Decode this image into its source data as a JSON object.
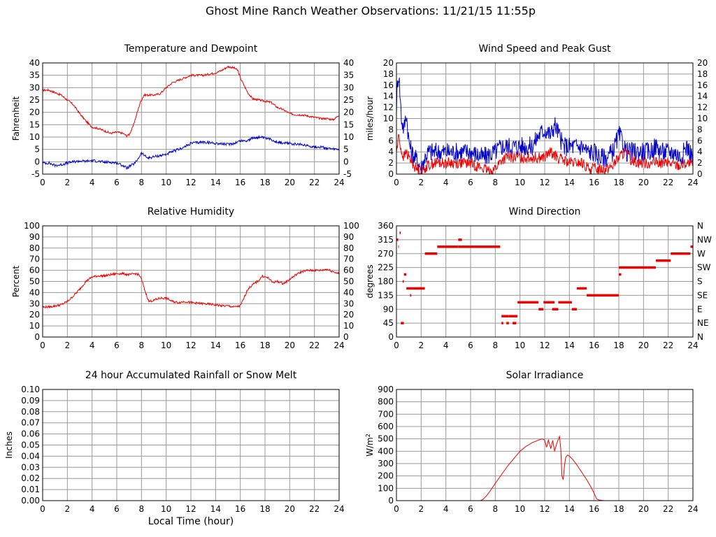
{
  "page": {
    "title": "Ghost Mine Ranch Weather Observations: 11/21/15 11:55p"
  },
  "chart_data": [
    {
      "id": "temp",
      "type": "line",
      "title": "Temperature and Dewpoint",
      "xlabel": "",
      "ylabel": "Fahrenheit",
      "xlim": [
        0,
        24
      ],
      "ylim": [
        -5,
        40
      ],
      "xticks": [
        0,
        2,
        4,
        6,
        8,
        10,
        12,
        14,
        16,
        18,
        20,
        22,
        24
      ],
      "yticks": [
        -5,
        0,
        5,
        10,
        15,
        20,
        25,
        30,
        35,
        40
      ],
      "right_ticks": [
        "-5",
        "0",
        "5",
        "10",
        "15",
        "20",
        "25",
        "30",
        "35",
        "40"
      ],
      "grid": true,
      "series": [
        {
          "name": "Temperature",
          "color": "#ee0000",
          "noise": 0.4,
          "x": [
            0,
            0.5,
            1.0,
            1.5,
            2.0,
            2.5,
            3.0,
            3.5,
            4.0,
            4.5,
            5.0,
            5.5,
            6.0,
            6.5,
            6.8,
            7.0,
            7.3,
            7.6,
            7.9,
            8.2,
            8.6,
            9.0,
            9.5,
            10.0,
            10.5,
            11.0,
            11.5,
            12.0,
            12.5,
            13.0,
            13.5,
            14.0,
            14.5,
            15.0,
            15.5,
            15.8,
            16.0,
            16.3,
            16.6,
            17.0,
            17.5,
            18.0,
            18.5,
            19.0,
            19.5,
            20.0,
            20.5,
            21.0,
            21.5,
            22.0,
            22.5,
            23.0,
            23.5,
            23.8,
            24.0
          ],
          "y": [
            29,
            29,
            28,
            27,
            25,
            23,
            19.5,
            16.5,
            14,
            13.5,
            12.5,
            11.5,
            12,
            11.5,
            10.5,
            11,
            14,
            19,
            24,
            27,
            27,
            27,
            27.5,
            30,
            32,
            33,
            34,
            35,
            35,
            35,
            35.5,
            36,
            37,
            38.5,
            38,
            37,
            34,
            31,
            28,
            25.5,
            25,
            24.5,
            24,
            22,
            21,
            19.5,
            19,
            19,
            18.5,
            18,
            17.5,
            17.5,
            17,
            18,
            19
          ]
        },
        {
          "name": "Dewpoint",
          "color": "#0000cc",
          "noise": 0.55,
          "x": [
            0,
            0.5,
            1.0,
            1.5,
            2.0,
            2.5,
            3.0,
            3.5,
            4.0,
            4.5,
            5.0,
            5.5,
            6.0,
            6.5,
            6.8,
            7.0,
            7.5,
            8.0,
            8.5,
            9.0,
            9.5,
            10.0,
            10.5,
            11.0,
            11.5,
            12.0,
            13.0,
            14.0,
            15.0,
            15.5,
            16.0,
            16.5,
            17.0,
            17.5,
            18.0,
            18.5,
            19.0,
            19.5,
            20.0,
            20.5,
            21.0,
            21.5,
            22.0,
            22.5,
            23.0,
            23.5,
            24.0
          ],
          "y": [
            -0.5,
            -0.5,
            -1.5,
            -1.2,
            -0.5,
            0,
            0.3,
            0.2,
            0.5,
            0.2,
            -0.2,
            -0.2,
            -0.5,
            -1.5,
            -2.5,
            -2,
            -0.5,
            3.5,
            1.5,
            2,
            2.5,
            3,
            4,
            5,
            6,
            7.5,
            8,
            7.5,
            7,
            7.5,
            8.5,
            8.5,
            9.5,
            10,
            9.5,
            9,
            8,
            7.5,
            7.5,
            7,
            7,
            6.5,
            6,
            6,
            5.5,
            5,
            5
          ]
        }
      ]
    },
    {
      "id": "wind",
      "type": "line",
      "title": "Wind Speed and Peak Gust",
      "xlabel": "",
      "ylabel": "miles/hour",
      "xlim": [
        0,
        24
      ],
      "ylim": [
        0,
        20
      ],
      "xticks": [
        0,
        2,
        4,
        6,
        8,
        10,
        12,
        14,
        16,
        18,
        20,
        22,
        24
      ],
      "yticks": [
        0,
        2,
        4,
        6,
        8,
        10,
        12,
        14,
        16,
        18,
        20
      ],
      "right_ticks": [
        "0",
        "2",
        "4",
        "6",
        "8",
        "10",
        "12",
        "14",
        "16",
        "18",
        "20"
      ],
      "grid": true,
      "series": [
        {
          "name": "Peak Gust",
          "color": "#0000cc",
          "noise": 1.8,
          "floor": 0,
          "x": [
            0,
            0.1,
            0.2,
            0.3,
            0.4,
            0.6,
            0.8,
            1.0,
            1.2,
            1.5,
            1.8,
            2.0,
            2.3,
            2.6,
            3.0,
            3.5,
            4.0,
            5.0,
            6.0,
            7.0,
            8.0,
            8.5,
            9.0,
            9.5,
            10.0,
            10.5,
            11.0,
            11.5,
            12.0,
            12.5,
            12.8,
            13.0,
            13.5,
            14.0,
            14.5,
            15.0,
            15.5,
            16.0,
            16.5,
            17.0,
            17.5,
            18.0,
            18.3,
            18.6,
            19.0,
            20.0,
            20.5,
            21.0,
            21.5,
            22.0,
            22.5,
            23.0,
            23.5,
            24.0
          ],
          "y": [
            12,
            17,
            18,
            14,
            10,
            8,
            11,
            6,
            4,
            3,
            2,
            1,
            3,
            4,
            4,
            4,
            4,
            4,
            4,
            3,
            4,
            5,
            5,
            5,
            5,
            5,
            5,
            7,
            8,
            7,
            9,
            8,
            5,
            5,
            5,
            5,
            4,
            4,
            3,
            3,
            4,
            7,
            6,
            4,
            4,
            4,
            4,
            5,
            4,
            4,
            4,
            3,
            5,
            3
          ]
        },
        {
          "name": "Wind Speed",
          "color": "#ee0000",
          "noise": 1.0,
          "floor": 0,
          "x": [
            0,
            0.2,
            0.4,
            0.6,
            0.8,
            1.0,
            1.3,
            1.6,
            2.0,
            2.5,
            3.0,
            4.0,
            5.0,
            6.0,
            7.0,
            7.5,
            8.0,
            8.5,
            9.0,
            9.5,
            10.0,
            11.0,
            12.0,
            12.5,
            13.0,
            14.0,
            15.0,
            15.5,
            16.0,
            16.5,
            17.0,
            17.5,
            18.0,
            18.5,
            19.0,
            20.0,
            21.0,
            22.0,
            23.0,
            23.5,
            24.0
          ],
          "y": [
            4,
            7,
            4,
            3,
            4,
            3,
            2,
            1,
            0.5,
            1.5,
            2,
            2,
            2,
            2,
            1,
            0.5,
            1,
            2.5,
            3,
            3,
            3,
            3,
            3,
            4,
            3,
            2,
            2,
            1,
            1,
            1,
            1,
            1.5,
            3,
            4,
            2.5,
            2,
            2,
            2,
            1.5,
            2,
            1.5
          ]
        }
      ]
    },
    {
      "id": "rh",
      "type": "line",
      "title": "Relative Humidity",
      "xlabel": "",
      "ylabel": "Percent",
      "xlim": [
        0,
        24
      ],
      "ylim": [
        0,
        100
      ],
      "xticks": [
        0,
        2,
        4,
        6,
        8,
        10,
        12,
        14,
        16,
        18,
        20,
        22,
        24
      ],
      "yticks": [
        0,
        10,
        20,
        30,
        40,
        50,
        60,
        70,
        80,
        90,
        100
      ],
      "right_ticks": [
        "0",
        "10",
        "20",
        "30",
        "40",
        "50",
        "60",
        "70",
        "80",
        "90",
        "100"
      ],
      "grid": true,
      "series": [
        {
          "name": "Relative Humidity",
          "color": "#ee0000",
          "noise": 1.0,
          "x": [
            0,
            0.5,
            1.0,
            1.5,
            2.0,
            2.5,
            3.0,
            3.5,
            4.0,
            4.5,
            5.0,
            5.5,
            6.0,
            6.5,
            7.0,
            7.5,
            7.8,
            8.0,
            8.3,
            8.6,
            9.0,
            9.5,
            10.0,
            10.5,
            11.0,
            11.5,
            12.0,
            13.0,
            14.0,
            14.5,
            15.0,
            15.5,
            16.0,
            16.3,
            16.6,
            17.0,
            17.5,
            17.8,
            18.0,
            18.3,
            18.6,
            19.0,
            19.5,
            20.0,
            20.5,
            21.0,
            21.5,
            22.0,
            22.5,
            23.0,
            23.5,
            24.0
          ],
          "y": [
            27,
            27,
            28,
            29,
            32,
            37,
            43,
            50,
            54,
            55,
            55,
            56,
            57,
            57,
            56,
            57,
            56,
            52,
            41,
            32,
            33,
            35,
            35,
            32,
            31,
            32,
            31,
            30,
            29,
            28,
            28,
            27,
            28,
            35,
            43,
            47,
            51,
            55,
            54,
            53,
            49,
            50,
            48,
            52,
            56,
            59,
            60,
            60,
            60,
            61,
            59,
            57
          ]
        }
      ]
    },
    {
      "id": "dir",
      "type": "scatter",
      "title": "Wind Direction",
      "xlabel": "",
      "ylabel": "degrees",
      "xlim": [
        0,
        24
      ],
      "ylim": [
        0,
        360
      ],
      "xticks": [
        0,
        2,
        4,
        6,
        8,
        10,
        12,
        14,
        16,
        18,
        20,
        22,
        24
      ],
      "yticks": [
        0,
        45,
        90,
        135,
        180,
        225,
        270,
        315,
        360
      ],
      "right_ticks": [
        "N",
        "NE",
        "E",
        "SE",
        "S",
        "SW",
        "W",
        "NW",
        "N"
      ],
      "grid": true,
      "segments": [
        {
          "x0": 0.0,
          "x1": 0.15,
          "y": 315
        },
        {
          "x0": 0.25,
          "x1": 0.35,
          "y": 337.5
        },
        {
          "x0": 0.15,
          "x1": 0.2,
          "y": 292.5
        },
        {
          "x0": 0.35,
          "x1": 0.6,
          "y": 45
        },
        {
          "x0": 0.5,
          "x1": 0.6,
          "y": 180
        },
        {
          "x0": 0.6,
          "x1": 0.8,
          "y": 202.5
        },
        {
          "x0": 0.8,
          "x1": 2.3,
          "y": 157.5
        },
        {
          "x0": 1.1,
          "x1": 1.2,
          "y": 135
        },
        {
          "x0": 2.3,
          "x1": 3.3,
          "y": 270
        },
        {
          "x0": 3.3,
          "x1": 5.0,
          "y": 292.5
        },
        {
          "x0": 5.0,
          "x1": 5.3,
          "y": 315
        },
        {
          "x0": 5.0,
          "x1": 8.4,
          "y": 292.5
        },
        {
          "x0": 8.5,
          "x1": 8.65,
          "y": 45
        },
        {
          "x0": 8.5,
          "x1": 9.1,
          "y": 67.5
        },
        {
          "x0": 8.9,
          "x1": 9.1,
          "y": 45
        },
        {
          "x0": 9.1,
          "x1": 9.8,
          "y": 67.5
        },
        {
          "x0": 9.4,
          "x1": 9.7,
          "y": 45
        },
        {
          "x0": 9.8,
          "x1": 11.5,
          "y": 112.5
        },
        {
          "x0": 11.5,
          "x1": 11.9,
          "y": 90
        },
        {
          "x0": 11.9,
          "x1": 12.8,
          "y": 112.5
        },
        {
          "x0": 12.6,
          "x1": 13.1,
          "y": 90
        },
        {
          "x0": 13.1,
          "x1": 14.2,
          "y": 112.5
        },
        {
          "x0": 14.2,
          "x1": 14.6,
          "y": 90
        },
        {
          "x0": 14.6,
          "x1": 15.4,
          "y": 157.5
        },
        {
          "x0": 15.4,
          "x1": 18.0,
          "y": 135
        },
        {
          "x0": 18.0,
          "x1": 18.2,
          "y": 202.5
        },
        {
          "x0": 18.0,
          "x1": 21.0,
          "y": 225
        },
        {
          "x0": 21.0,
          "x1": 22.2,
          "y": 247.5
        },
        {
          "x0": 22.2,
          "x1": 23.8,
          "y": 270
        },
        {
          "x0": 23.8,
          "x1": 24.0,
          "y": 292.5
        }
      ],
      "color": "#ee0000"
    },
    {
      "id": "rain",
      "type": "line",
      "title": "24 hour Accumulated Rainfall or Snow Melt",
      "xlabel": "Local Time (hour)",
      "ylabel": "Inches",
      "xlim": [
        0,
        24
      ],
      "ylim": [
        0,
        0.1
      ],
      "xticks": [
        0,
        2,
        4,
        6,
        8,
        10,
        12,
        14,
        16,
        18,
        20,
        22,
        24
      ],
      "yticks": [
        0,
        0.01,
        0.02,
        0.03,
        0.04,
        0.05,
        0.06,
        0.07,
        0.08,
        0.09,
        0.1
      ],
      "ytick_labels": [
        "0.00",
        "0.01",
        "0.02",
        "0.03",
        "0.04",
        "0.05",
        "0.06",
        "0.07",
        "0.08",
        "0.09",
        "0.10"
      ],
      "right_ticks": [],
      "grid": true,
      "series": [
        {
          "name": "Rainfall",
          "color": "#ee0000",
          "noise": 0,
          "x": [
            0,
            24
          ],
          "y": [
            0,
            0
          ]
        }
      ]
    },
    {
      "id": "solar",
      "type": "line",
      "title": "Solar Irradiance",
      "xlabel": "",
      "ylabel": "W/m",
      "ylabel_sup": "2",
      "xlim": [
        0,
        24
      ],
      "ylim": [
        0,
        900
      ],
      "xticks": [
        0,
        2,
        4,
        6,
        8,
        10,
        12,
        14,
        16,
        18,
        20,
        22,
        24
      ],
      "yticks": [
        0,
        100,
        200,
        300,
        400,
        500,
        600,
        700,
        800,
        900
      ],
      "right_ticks": [],
      "grid": true,
      "series": [
        {
          "name": "Solar Irradiance",
          "color": "#ee0000",
          "noise": 0,
          "x": [
            0,
            6.8,
            7.0,
            7.3,
            7.6,
            8.0,
            8.5,
            9.0,
            9.5,
            10.0,
            10.5,
            11.0,
            11.5,
            11.8,
            12.0,
            12.15,
            12.3,
            12.5,
            12.65,
            12.8,
            13.0,
            13.2,
            13.3,
            13.4,
            13.5,
            13.6,
            13.7,
            13.85,
            14.0,
            14.3,
            14.6,
            15.0,
            15.4,
            15.8,
            16.0,
            16.2,
            16.4,
            16.8,
            24.0
          ],
          "y": [
            0,
            0,
            10,
            40,
            80,
            140,
            210,
            280,
            340,
            400,
            440,
            470,
            490,
            500,
            490,
            430,
            490,
            420,
            490,
            400,
            470,
            520,
            420,
            200,
            170,
            280,
            350,
            370,
            360,
            330,
            290,
            230,
            170,
            100,
            60,
            15,
            5,
            0,
            0
          ]
        }
      ]
    }
  ]
}
